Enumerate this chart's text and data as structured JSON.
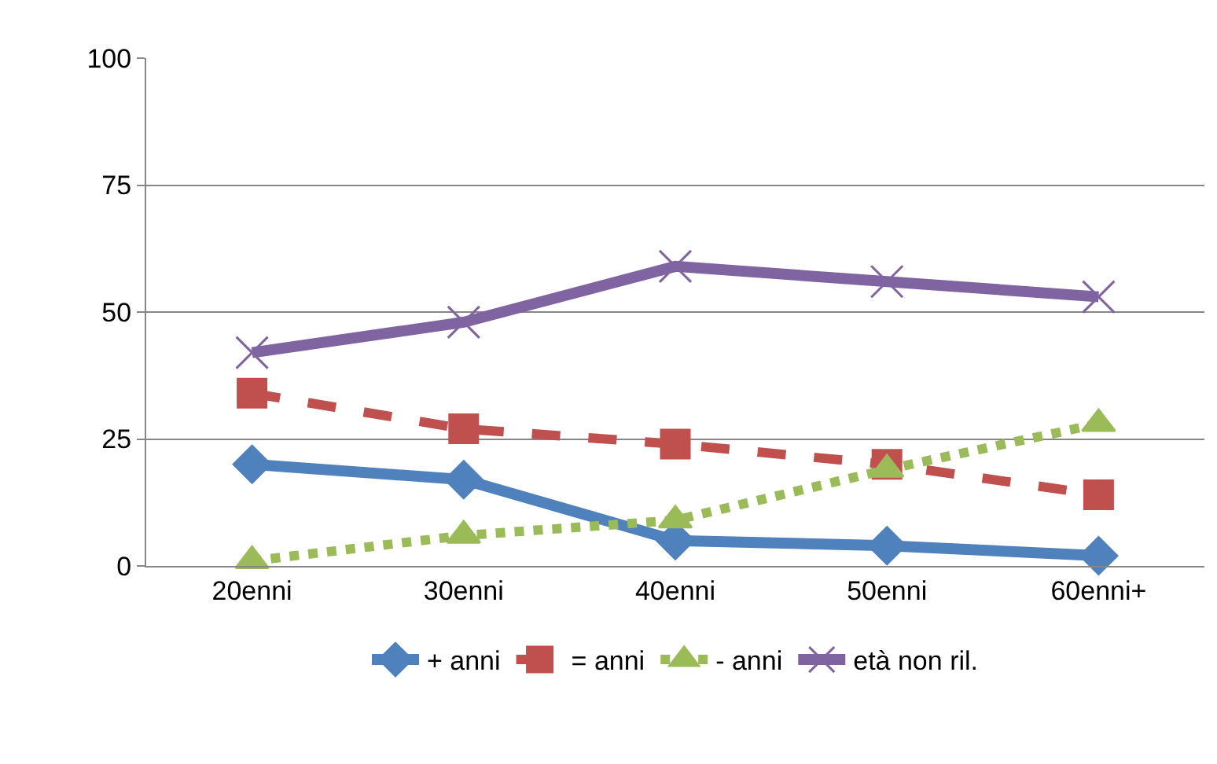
{
  "chart_data": {
    "type": "line",
    "categories": [
      "20enni",
      "30enni",
      "40enni",
      "50enni",
      "60enni+"
    ],
    "series": [
      {
        "name": "+ anni",
        "color": "#4f81bd",
        "marker": "diamond",
        "line_style": "solid",
        "values": [
          20,
          17,
          5,
          4,
          2
        ]
      },
      {
        "name": "= anni",
        "color": "#c0504d",
        "marker": "square",
        "line_style": "dashed",
        "values": [
          34,
          27,
          24,
          20,
          14
        ]
      },
      {
        "name": "- anni",
        "color": "#9bbb59",
        "marker": "triangle",
        "line_style": "dotted",
        "values": [
          1,
          6,
          9,
          19,
          28
        ]
      },
      {
        "name": "età non ril.",
        "color": "#8064a2",
        "marker": "cross",
        "line_style": "solid",
        "values": [
          42,
          48,
          59,
          56,
          53
        ]
      }
    ],
    "ylim": [
      0,
      100
    ],
    "yticks": [
      0,
      25,
      50,
      75,
      100
    ],
    "grid": "y",
    "legend": "bottom"
  }
}
